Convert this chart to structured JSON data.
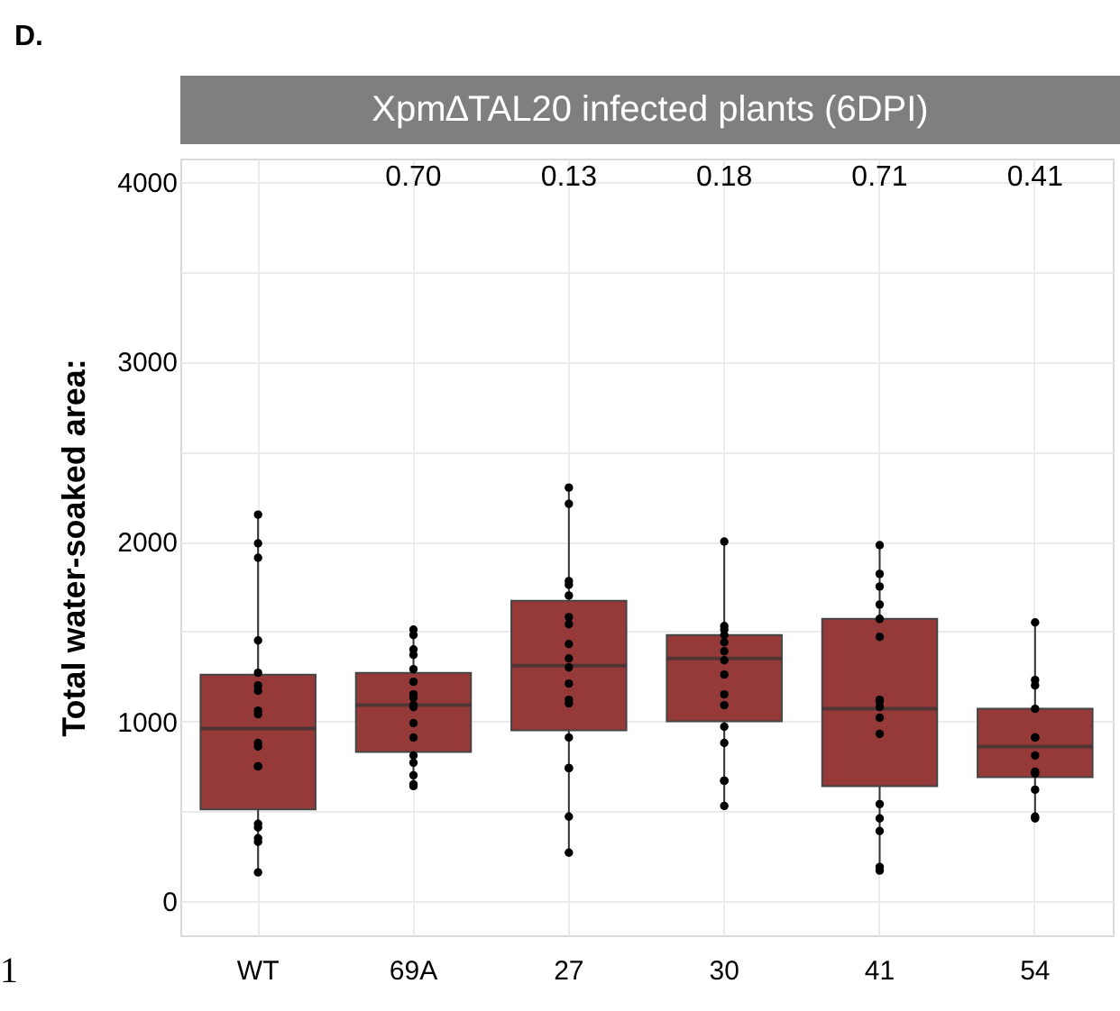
{
  "chart_data": {
    "type": "box",
    "title": "Xpm∆TAL20 infected plants (6DPI)",
    "ylabel": "Total water-soaked area:",
    "categories": [
      "WT",
      "69A",
      "27",
      "30",
      "41",
      "54"
    ],
    "ylim": [
      -190,
      4130
    ],
    "yticks": [
      0,
      {
        "value": 500,
        "label": null
      },
      1000,
      {
        "value": 1500,
        "label": null
      },
      2000,
      {
        "value": 2500,
        "label": null
      },
      3000,
      {
        "value": 3500,
        "label": null
      },
      4000
    ],
    "grid": true,
    "annotations": [
      "D.",
      "0.70",
      "0.13",
      "0.18",
      "0.71",
      "0.41",
      "1"
    ],
    "series": [
      {
        "type": "box",
        "color": "#963a39",
        "boxes": [
          {
            "low": 160,
            "q1": 510,
            "median": 960,
            "q3": 1260,
            "high": 2150
          },
          {
            "low": 640,
            "q1": 830,
            "median": 1090,
            "q3": 1270,
            "high": 1510
          },
          {
            "low": 270,
            "q1": 950,
            "median": 1310,
            "q3": 1670,
            "high": 2300
          },
          {
            "low": 530,
            "q1": 1000,
            "median": 1350,
            "q3": 1480,
            "high": 2000
          },
          {
            "low": 170,
            "q1": 640,
            "median": 1070,
            "q3": 1570,
            "high": 1980
          },
          {
            "low": 460,
            "q1": 690,
            "median": 860,
            "q3": 1070,
            "high": 1550
          }
        ]
      },
      {
        "type": "scatter",
        "color": "#000000",
        "marker": "circle",
        "x": [
          "WT",
          "WT",
          "WT",
          "WT",
          "WT",
          "WT",
          "WT",
          "WT",
          "WT",
          "WT",
          "WT",
          "WT",
          "WT",
          "WT",
          "WT",
          "WT",
          "WT",
          "WT",
          "69A",
          "69A",
          "69A",
          "69A",
          "69A",
          "69A",
          "69A",
          "69A",
          "69A",
          "69A",
          "69A",
          "69A",
          "69A",
          "69A",
          "69A",
          "69A",
          "69A",
          "27",
          "27",
          "27",
          "27",
          "27",
          "27",
          "27",
          "27",
          "27",
          "27",
          "27",
          "27",
          "27",
          "27",
          "27",
          "27",
          "27",
          "27",
          "30",
          "30",
          "30",
          "30",
          "30",
          "30",
          "30",
          "30",
          "30",
          "30",
          "30",
          "30",
          "30",
          "30",
          "30",
          "41",
          "41",
          "41",
          "41",
          "41",
          "41",
          "41",
          "41",
          "41",
          "41",
          "41",
          "41",
          "41",
          "41",
          "41",
          "41",
          "54",
          "54",
          "54",
          "54",
          "54",
          "54",
          "54",
          "54",
          "54",
          "54",
          "54",
          "54"
        ],
        "values": [
          2150,
          1990,
          1910,
          1450,
          1270,
          1200,
          1170,
          1060,
          1040,
          880,
          860,
          750,
          750,
          430,
          410,
          350,
          330,
          160,
          1510,
          1480,
          1400,
          1370,
          1290,
          1220,
          1150,
          1130,
          1090,
          1080,
          990,
          910,
          810,
          770,
          700,
          650,
          640,
          2300,
          2210,
          1780,
          1760,
          1700,
          1580,
          1540,
          1430,
          1350,
          1300,
          1210,
          1120,
          1100,
          910,
          740,
          740,
          470,
          270,
          2000,
          1530,
          1510,
          1480,
          1440,
          1390,
          1340,
          1260,
          1150,
          1090,
          970,
          880,
          670,
          670,
          530,
          1980,
          1820,
          1750,
          1650,
          1570,
          1470,
          1120,
          1110,
          1080,
          1020,
          930,
          540,
          460,
          390,
          190,
          170,
          1550,
          1230,
          1200,
          1070,
          910,
          910,
          810,
          720,
          710,
          620,
          470,
          460
        ]
      }
    ]
  }
}
